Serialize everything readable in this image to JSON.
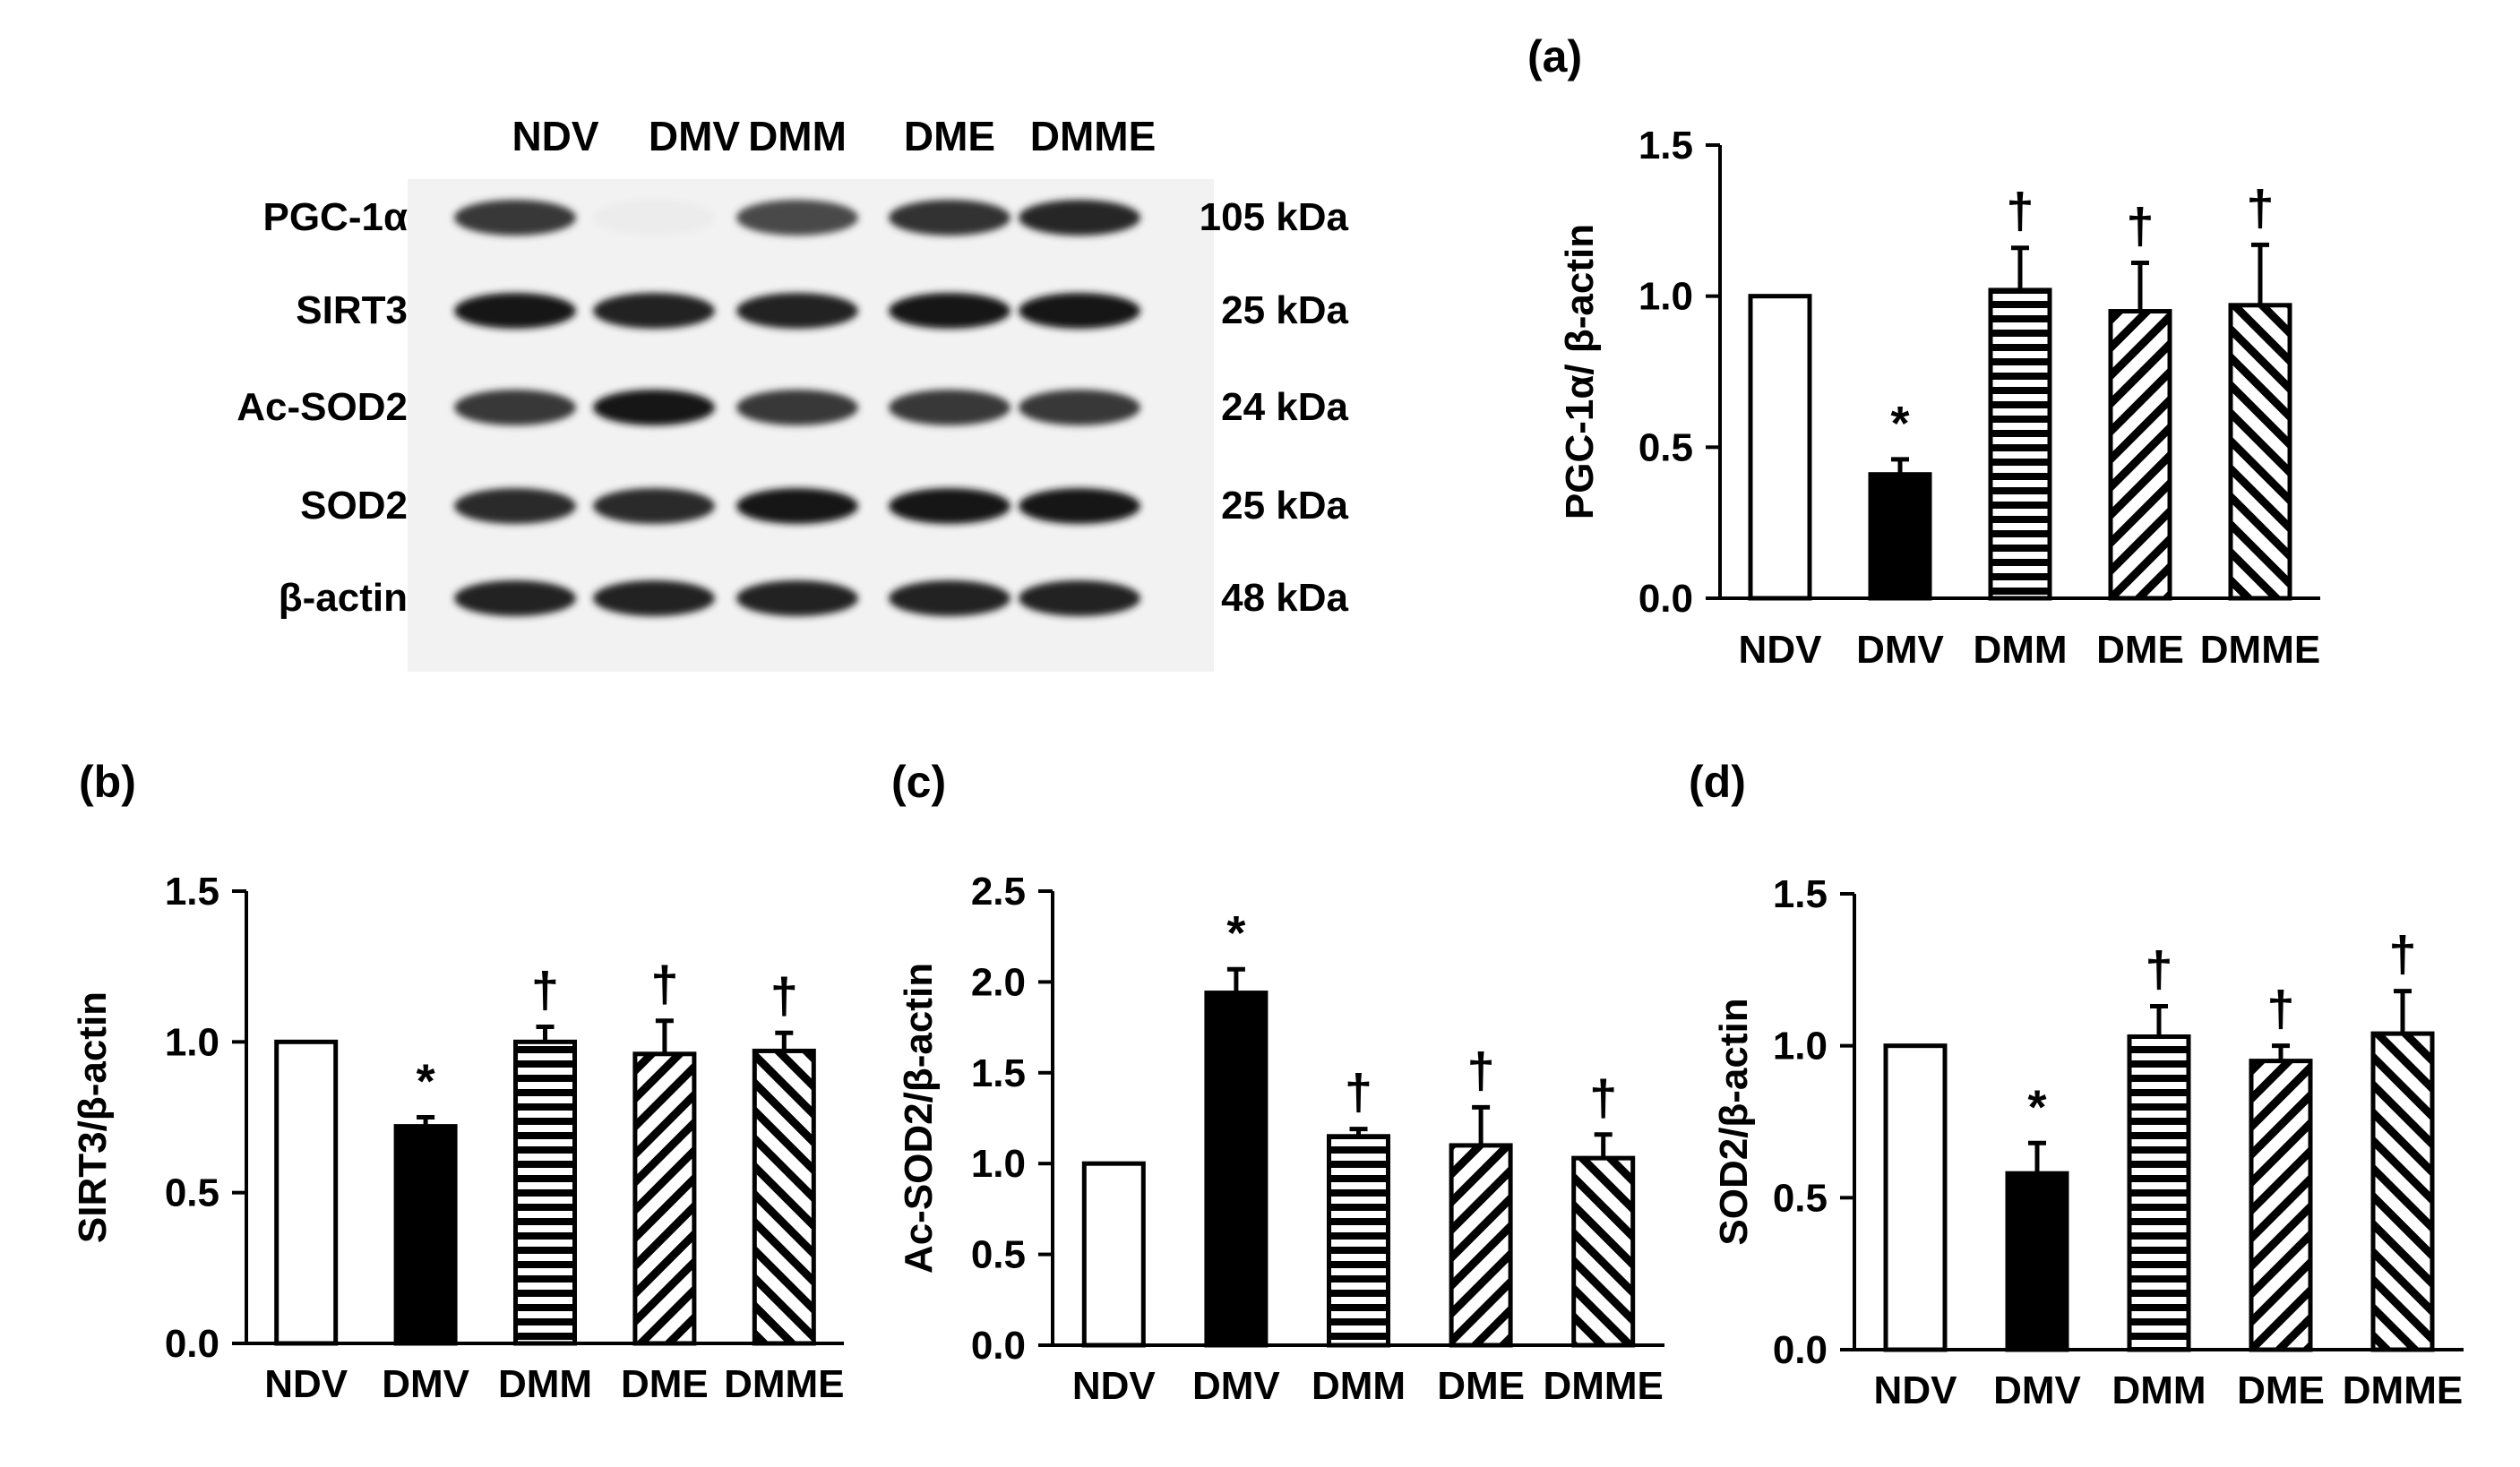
{
  "blot": {
    "lanes": [
      "NDV",
      "DMV",
      "DMM",
      "DME",
      "DMME"
    ],
    "rows": [
      {
        "protein": "PGC-1α",
        "size": "105 kDa",
        "intensity": [
          0.85,
          0.08,
          0.78,
          0.88,
          0.92
        ]
      },
      {
        "protein": "SIRT3",
        "size": "25 kDa",
        "intensity": [
          1.0,
          0.95,
          0.95,
          1.0,
          1.0
        ]
      },
      {
        "protein": "Ac-SOD2",
        "size": "24 kDa",
        "intensity": [
          0.85,
          1.0,
          0.85,
          0.85,
          0.85
        ]
      },
      {
        "protein": "SOD2",
        "size": "25 kDa",
        "intensity": [
          0.9,
          0.9,
          1.0,
          1.0,
          1.0
        ]
      },
      {
        "protein": "β-actin",
        "size": "48 kDa",
        "intensity": [
          0.95,
          0.95,
          0.95,
          0.95,
          0.95
        ]
      }
    ]
  },
  "colors": {
    "bar_edge": "#000000",
    "filled_bar": "#000000",
    "open_bar": "#ffffff"
  },
  "chart_data": [
    {
      "panel": "(a)",
      "type": "bar",
      "categories": [
        "NDV",
        "DMV",
        "DMM",
        "DME",
        "DMME"
      ],
      "values": [
        1.0,
        0.41,
        1.02,
        0.95,
        0.97
      ],
      "errors": [
        0,
        0.05,
        0.14,
        0.16,
        0.2
      ],
      "patterns": [
        "open",
        "solid",
        "horizontal",
        "diagonal-right",
        "diagonal-left"
      ],
      "markers": [
        "",
        "*",
        "†",
        "†",
        "†"
      ],
      "ylabel": "PGC-1α/ β-actin",
      "ylim": [
        0,
        1.5
      ],
      "yticks": [
        "0.0",
        "0.5",
        "1.0",
        "1.5"
      ]
    },
    {
      "panel": "(b)",
      "type": "bar",
      "categories": [
        "NDV",
        "DMV",
        "DMM",
        "DME",
        "DMME"
      ],
      "values": [
        1.0,
        0.72,
        1.0,
        0.96,
        0.97
      ],
      "errors": [
        0,
        0.03,
        0.05,
        0.11,
        0.06
      ],
      "patterns": [
        "open",
        "solid",
        "horizontal",
        "diagonal-right",
        "diagonal-left"
      ],
      "markers": [
        "",
        "*",
        "†",
        "†",
        "†"
      ],
      "ylabel": "SIRT3/β-actin",
      "ylim": [
        0,
        1.5
      ],
      "yticks": [
        "0.0",
        "0.5",
        "1.0",
        "1.5"
      ]
    },
    {
      "panel": "(c)",
      "type": "bar",
      "categories": [
        "NDV",
        "DMV",
        "DMM",
        "DME",
        "DMME"
      ],
      "values": [
        1.0,
        1.94,
        1.15,
        1.1,
        1.03
      ],
      "errors": [
        0,
        0.13,
        0.04,
        0.21,
        0.13
      ],
      "patterns": [
        "open",
        "solid",
        "horizontal",
        "diagonal-right",
        "diagonal-left"
      ],
      "markers": [
        "",
        "*",
        "†",
        "†",
        "†"
      ],
      "ylabel": "Ac-SOD2/β-actin",
      "ylim": [
        0,
        2.5
      ],
      "yticks": [
        "0.0",
        "0.5",
        "1.0",
        "1.5",
        "2.0",
        "2.5"
      ]
    },
    {
      "panel": "(d)",
      "type": "bar",
      "categories": [
        "NDV",
        "DMV",
        "DMM",
        "DME",
        "DMME"
      ],
      "values": [
        1.0,
        0.58,
        1.03,
        0.95,
        1.04
      ],
      "errors": [
        0,
        0.1,
        0.1,
        0.05,
        0.14
      ],
      "patterns": [
        "open",
        "solid",
        "horizontal",
        "diagonal-right",
        "diagonal-left"
      ],
      "markers": [
        "",
        "*",
        "†",
        "†",
        "†"
      ],
      "ylabel": "SOD2/β-actin",
      "ylim": [
        0,
        1.5
      ],
      "yticks": [
        "0.0",
        "0.5",
        "1.0",
        "1.5"
      ]
    }
  ]
}
